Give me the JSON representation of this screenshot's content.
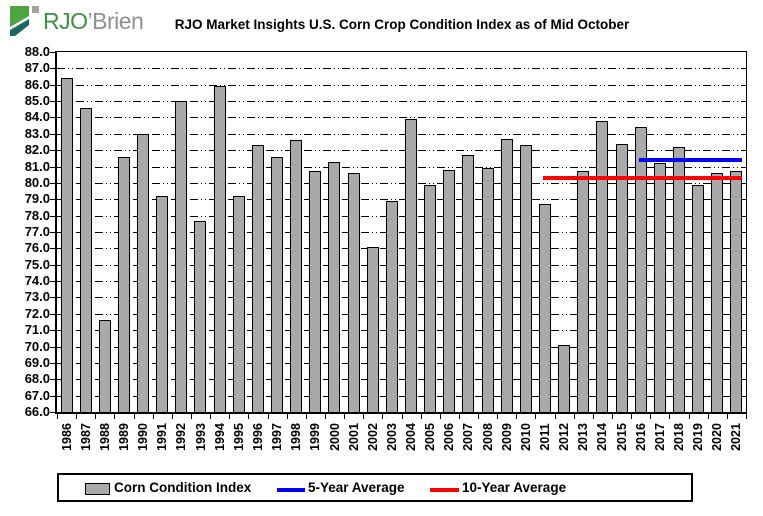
{
  "logo": {
    "brand_green": "RJO",
    "brand_gray": "’Brien"
  },
  "title": "RJO Market Insights U.S. Corn Crop Condition Index as of Mid October",
  "chart_data": {
    "type": "bar",
    "title": "RJO Market Insights U.S. Corn Crop Condition Index as of Mid October",
    "categories": [
      "1986",
      "1987",
      "1988",
      "1989",
      "1990",
      "1991",
      "1992",
      "1993",
      "1994",
      "1995",
      "1996",
      "1997",
      "1998",
      "1999",
      "2000",
      "2001",
      "2002",
      "2003",
      "2004",
      "2005",
      "2006",
      "2007",
      "2008",
      "2009",
      "2010",
      "2011",
      "2012",
      "2013",
      "2014",
      "2015",
      "2016",
      "2017",
      "2018",
      "2019",
      "2020",
      "2021"
    ],
    "values": [
      86.4,
      84.6,
      71.6,
      81.6,
      83.0,
      79.2,
      85.0,
      77.7,
      85.9,
      79.2,
      82.3,
      81.6,
      82.6,
      80.7,
      81.3,
      80.6,
      76.1,
      78.9,
      83.9,
      79.9,
      80.8,
      81.7,
      80.9,
      82.7,
      82.3,
      78.7,
      70.1,
      80.7,
      83.8,
      82.4,
      83.4,
      81.2,
      82.2,
      79.9,
      80.6,
      80.7
    ],
    "xlabel": "",
    "ylabel": "",
    "ylim": [
      66.0,
      88.0
    ],
    "ytick_step": 1.0,
    "ytick_format": "one-decimal",
    "grid": "horizontal dash-dot-dot",
    "bar_color": "#A9A9A9",
    "bar_border_color": "#000000",
    "reference_lines": [
      {
        "label": "5-Year Average",
        "value": 81.4,
        "color": "#0000FF",
        "start_category": "2016",
        "end_category": "2021"
      },
      {
        "label": "10-Year Average",
        "value": 80.3,
        "color": "#FF0000",
        "start_category": "2011",
        "end_category": "2021"
      }
    ],
    "legend_position": "bottom"
  },
  "legend": {
    "items": [
      {
        "label": "Corn Condition Index",
        "swatch": "bar",
        "color": "#A9A9A9"
      },
      {
        "label": "5-Year Average",
        "swatch": "line",
        "color": "#0000FF"
      },
      {
        "label": "10-Year Average",
        "swatch": "line",
        "color": "#FF0000"
      }
    ]
  }
}
